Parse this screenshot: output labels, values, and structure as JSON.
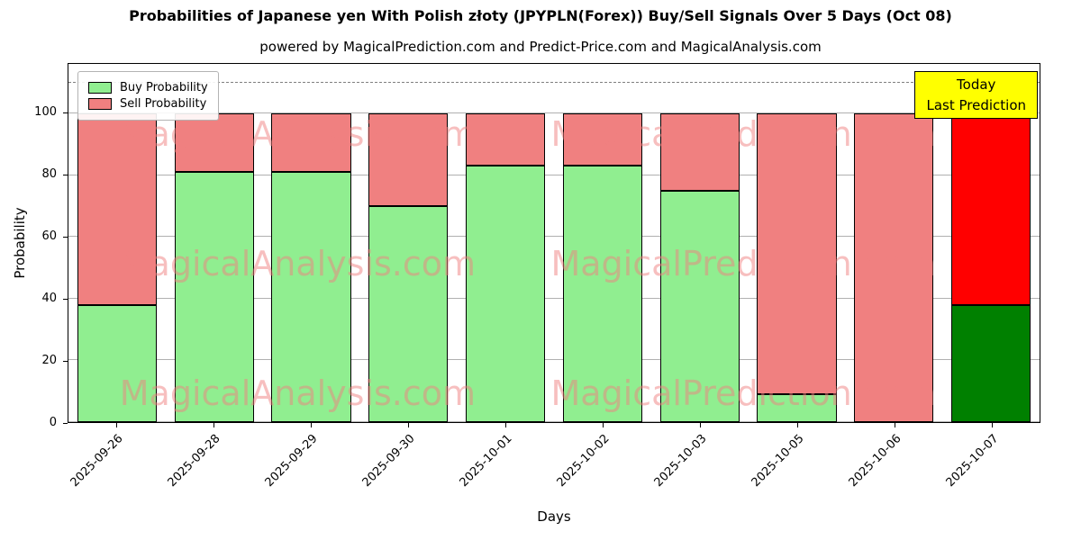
{
  "title": "Probabilities of Japanese yen With Polish złoty (JPYPLN(Forex)) Buy/Sell Signals Over 5 Days (Oct 08)",
  "subtitle": "powered by MagicalPrediction.com and Predict-Price.com and MagicalAnalysis.com",
  "annotation": {
    "line1": "Today",
    "line2": "Last Prediction"
  },
  "watermarks": [
    "MagicalAnalysis.com",
    "MagicalPrediction.com"
  ],
  "legend": [
    {
      "label": "Buy Probability",
      "color": "#90ee90"
    },
    {
      "label": "Sell Probability",
      "color": "#f08080"
    }
  ],
  "chart_data": {
    "type": "bar",
    "stacked": true,
    "title": "Probabilities of Japanese yen With Polish złoty (JPYPLN(Forex)) Buy/Sell Signals Over 5 Days (Oct 08)",
    "xlabel": "Days",
    "ylabel": "Probability",
    "categories": [
      "2025-09-26",
      "2025-09-28",
      "2025-09-29",
      "2025-09-30",
      "2025-10-01",
      "2025-10-02",
      "2025-10-03",
      "2025-10-05",
      "2025-10-06",
      "2025-10-07"
    ],
    "series": [
      {
        "name": "Buy Probability",
        "values": [
          38,
          81,
          81,
          70,
          83,
          83,
          75,
          9,
          0,
          38
        ]
      },
      {
        "name": "Sell Probability",
        "values": [
          62,
          19,
          19,
          30,
          17,
          17,
          25,
          91,
          100,
          62
        ]
      }
    ],
    "ylim": [
      0,
      116
    ],
    "yticks": [
      0,
      20,
      40,
      60,
      80,
      100
    ],
    "dashed_line_y": 110,
    "normal_colors": {
      "buy": "#90ee90",
      "sell": "#f08080"
    },
    "today_colors": {
      "buy": "#008000",
      "sell": "#ff0000"
    },
    "grid": true,
    "legend_position": "upper-left"
  }
}
